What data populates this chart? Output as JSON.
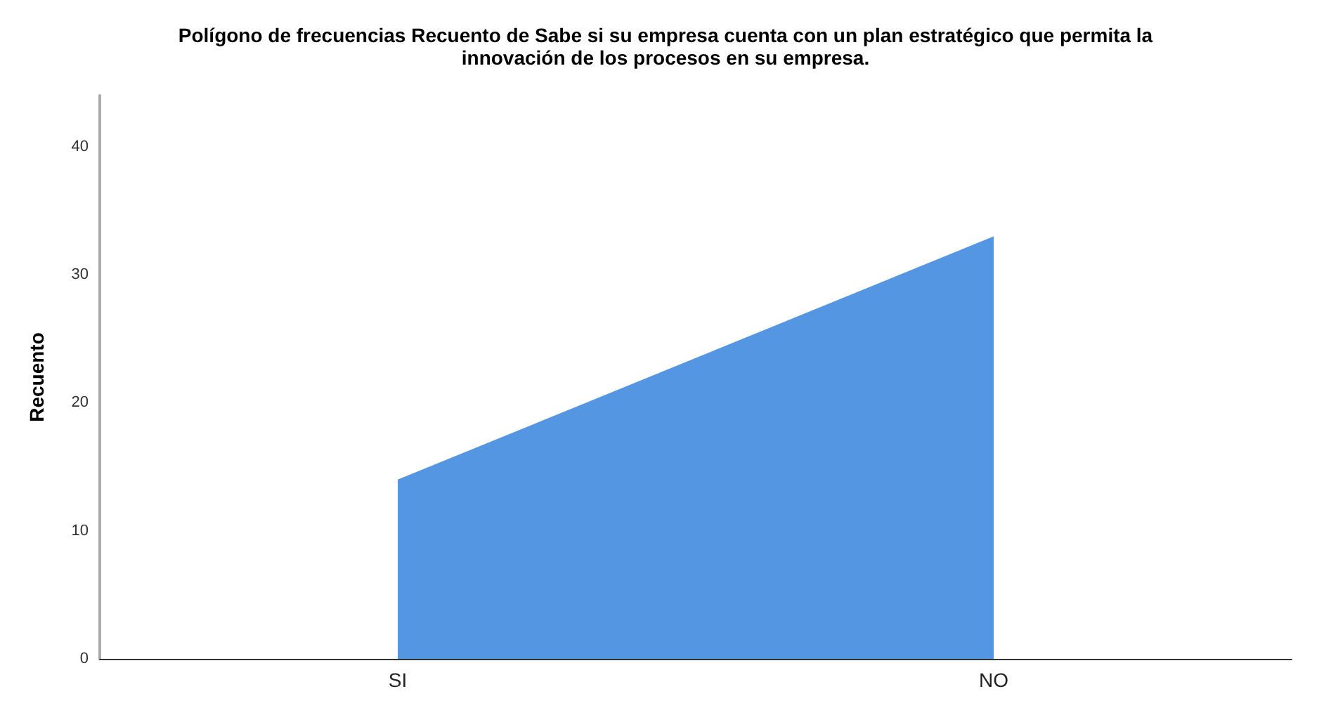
{
  "chart_data": {
    "type": "area",
    "title": "Polígono de frecuencias Recuento de Sabe si su empresa cuenta con un plan estratégico que permita la\ninnovación de los procesos en su empresa.",
    "ylabel": "Recuento",
    "categories": [
      "SI",
      "NO"
    ],
    "values": [
      14,
      33
    ],
    "color": "#5596e3",
    "ylim": [
      0,
      44
    ],
    "yticks": [
      0,
      10,
      20,
      30,
      40
    ],
    "grid": false
  }
}
